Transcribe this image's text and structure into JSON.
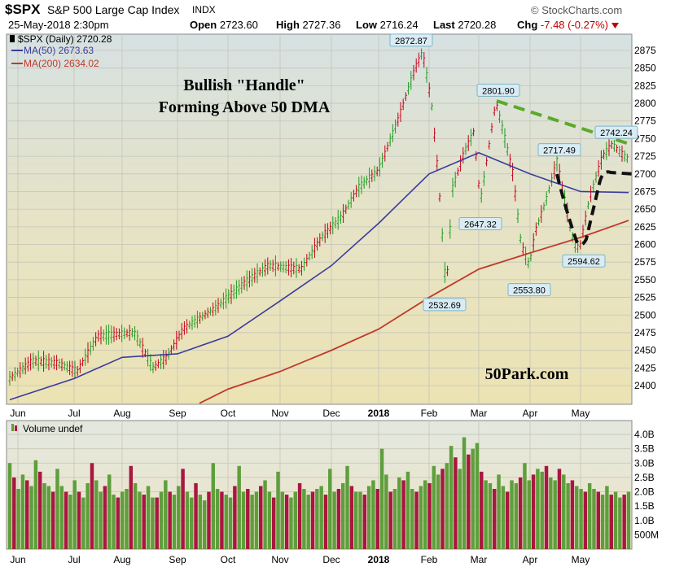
{
  "header": {
    "symbol": "$SPX",
    "index_name": "S&P 500 Large Cap Index",
    "exchange": "INDX",
    "brand": "© StockCharts.com",
    "datetime": "25-May-2018 2:30pm",
    "open_label": "Open",
    "open_value": "2723.60",
    "high_label": "High",
    "high_value": "2727.36",
    "low_label": "Low",
    "low_value": "2716.24",
    "last_label": "Last",
    "last_value": "2720.28",
    "chg_label": "Chg",
    "chg_value": "-7.48 (-0.27%)",
    "chg_icon": "down-triangle-icon"
  },
  "price_legend": {
    "line1": "$SPX (Daily) 2720.28",
    "line2": "MA(50) 2673.63",
    "line3": "MA(200) 2634.02"
  },
  "annotations": {
    "title_line1": "Bullish \"Handle\"",
    "title_line2": "Forming Above 50 DMA",
    "watermark": "50Park.com"
  },
  "volume_legend": "Volume undef",
  "colors": {
    "up": "#1e9a1e",
    "down": "#c4001a",
    "ma50": "#3b3b9e",
    "ma200": "#c0392b",
    "trendline": "#5aaa2a",
    "handle": "#111111",
    "vol_up": "#5f9e3c",
    "vol_down": "#a8173f"
  },
  "chart_data": [
    {
      "type": "line",
      "title": "S&P 500 Large Cap Index",
      "y_axis_side": "right",
      "ylim": [
        2375,
        2900
      ],
      "y_ticks": [
        2400,
        2425,
        2450,
        2475,
        2500,
        2525,
        2550,
        2575,
        2600,
        2625,
        2650,
        2675,
        2700,
        2725,
        2750,
        2775,
        2800,
        2825,
        2850,
        2875
      ],
      "x_ticks": [
        "Jun",
        "Jul",
        "Aug",
        "Sep",
        "Oct",
        "Nov",
        "Dec",
        "2018",
        "Feb",
        "Mar",
        "Apr",
        "May"
      ],
      "grid": true,
      "legend_placement": "top-left",
      "series": [
        {
          "name": "$SPX (Daily)",
          "x": [
            "Jun",
            "Jul",
            "Aug",
            "Sep",
            "Oct",
            "Nov",
            "Dec",
            "2018",
            "Jan-26",
            "Feb-08",
            "Feb-15",
            "Feb-26",
            "Mar-09",
            "Mar-22",
            "Apr-02",
            "Apr-18",
            "May-03",
            "May-21",
            "May-25"
          ],
          "values": [
            2420,
            2430,
            2470,
            2450,
            2540,
            2580,
            2640,
            2695,
            2872.87,
            2532.69,
            2730,
            2780,
            2801.9,
            2647.32,
            2553.8,
            2717.49,
            2594.62,
            2742.24,
            2720.28
          ]
        },
        {
          "name": "MA(50)",
          "x": [
            "Jun",
            "Jul",
            "Aug",
            "Sep",
            "Oct",
            "Nov",
            "Dec",
            "2018",
            "Feb",
            "Mar",
            "Apr",
            "May",
            "May-25"
          ],
          "values": [
            2380,
            2410,
            2440,
            2445,
            2470,
            2520,
            2570,
            2630,
            2700,
            2730,
            2700,
            2675,
            2673.63
          ]
        },
        {
          "name": "MA(200)",
          "x": [
            "Sep",
            "Oct",
            "Nov",
            "Dec",
            "2018",
            "Feb",
            "Mar",
            "Apr",
            "May",
            "May-25"
          ],
          "values": [
            2375,
            2395,
            2420,
            2450,
            2480,
            2525,
            2565,
            2588,
            2610,
            2634.02
          ]
        }
      ],
      "callouts": [
        "2872.87",
        "2801.90",
        "2742.24",
        "2717.49",
        "2647.32",
        "2594.62",
        "2553.80",
        "2532.69"
      ]
    },
    {
      "type": "bar",
      "title": "Volume undef",
      "y_axis_side": "right",
      "y_ticks": [
        "500M",
        "1.0B",
        "1.5B",
        "2.0B",
        "2.5B",
        "3.0B",
        "3.5B",
        "4.0B"
      ],
      "ylim": [
        0,
        4.2
      ],
      "x_ticks": [
        "Jun",
        "Jul",
        "Aug",
        "Sep",
        "Oct",
        "Nov",
        "Dec",
        "2018",
        "Feb",
        "Mar",
        "Apr",
        "May"
      ],
      "values_in_billions": [
        3.0,
        2.5,
        2.1,
        2.6,
        2.4,
        2.2,
        3.1,
        2.7,
        2.3,
        2.2,
        2.0,
        2.8,
        2.2,
        2.0,
        1.9,
        2.4,
        2.0,
        1.8,
        2.3,
        3.0,
        2.4,
        2.0,
        2.2,
        2.6,
        1.9,
        1.8,
        2.0,
        2.1,
        2.9,
        2.3,
        2.0,
        1.9,
        2.2,
        1.8,
        1.8,
        2.0,
        2.4,
        2.0,
        1.9,
        2.2,
        2.8,
        2.0,
        1.8,
        2.3,
        1.9,
        1.7,
        2.0,
        3.0,
        2.1,
        2.0,
        1.9,
        1.8,
        2.2,
        2.9,
        2.0,
        2.1,
        1.9,
        2.0,
        2.2,
        2.4,
        2.0,
        1.8,
        2.7,
        2.0,
        1.9,
        1.8,
        2.0,
        2.3,
        2.1,
        1.9,
        2.0,
        2.1,
        2.2,
        1.9,
        2.8,
        2.0,
        2.1,
        2.3,
        2.9,
        2.2,
        2.0,
        2.0,
        1.9,
        2.2,
        2.4,
        2.1,
        3.5,
        2.6,
        2.0,
        2.1,
        2.5,
        2.4,
        2.7,
        2.1,
        2.0,
        2.2,
        2.4,
        2.3,
        2.9,
        2.6,
        2.8,
        3.0,
        3.6,
        3.2,
        2.8,
        3.9,
        3.3,
        3.5,
        3.7,
        2.7,
        2.4,
        2.3,
        2.1,
        2.6,
        2.2,
        2.0,
        2.4,
        2.3,
        2.5,
        3.0,
        2.4,
        2.6,
        2.8,
        2.7,
        2.9,
        2.5,
        2.4,
        2.8,
        2.6,
        2.3,
        2.4,
        2.2,
        2.1,
        2.0,
        2.3,
        2.1,
        2.0,
        1.9,
        2.2,
        1.9,
        2.0,
        1.8,
        1.9,
        2.0
      ]
    }
  ]
}
